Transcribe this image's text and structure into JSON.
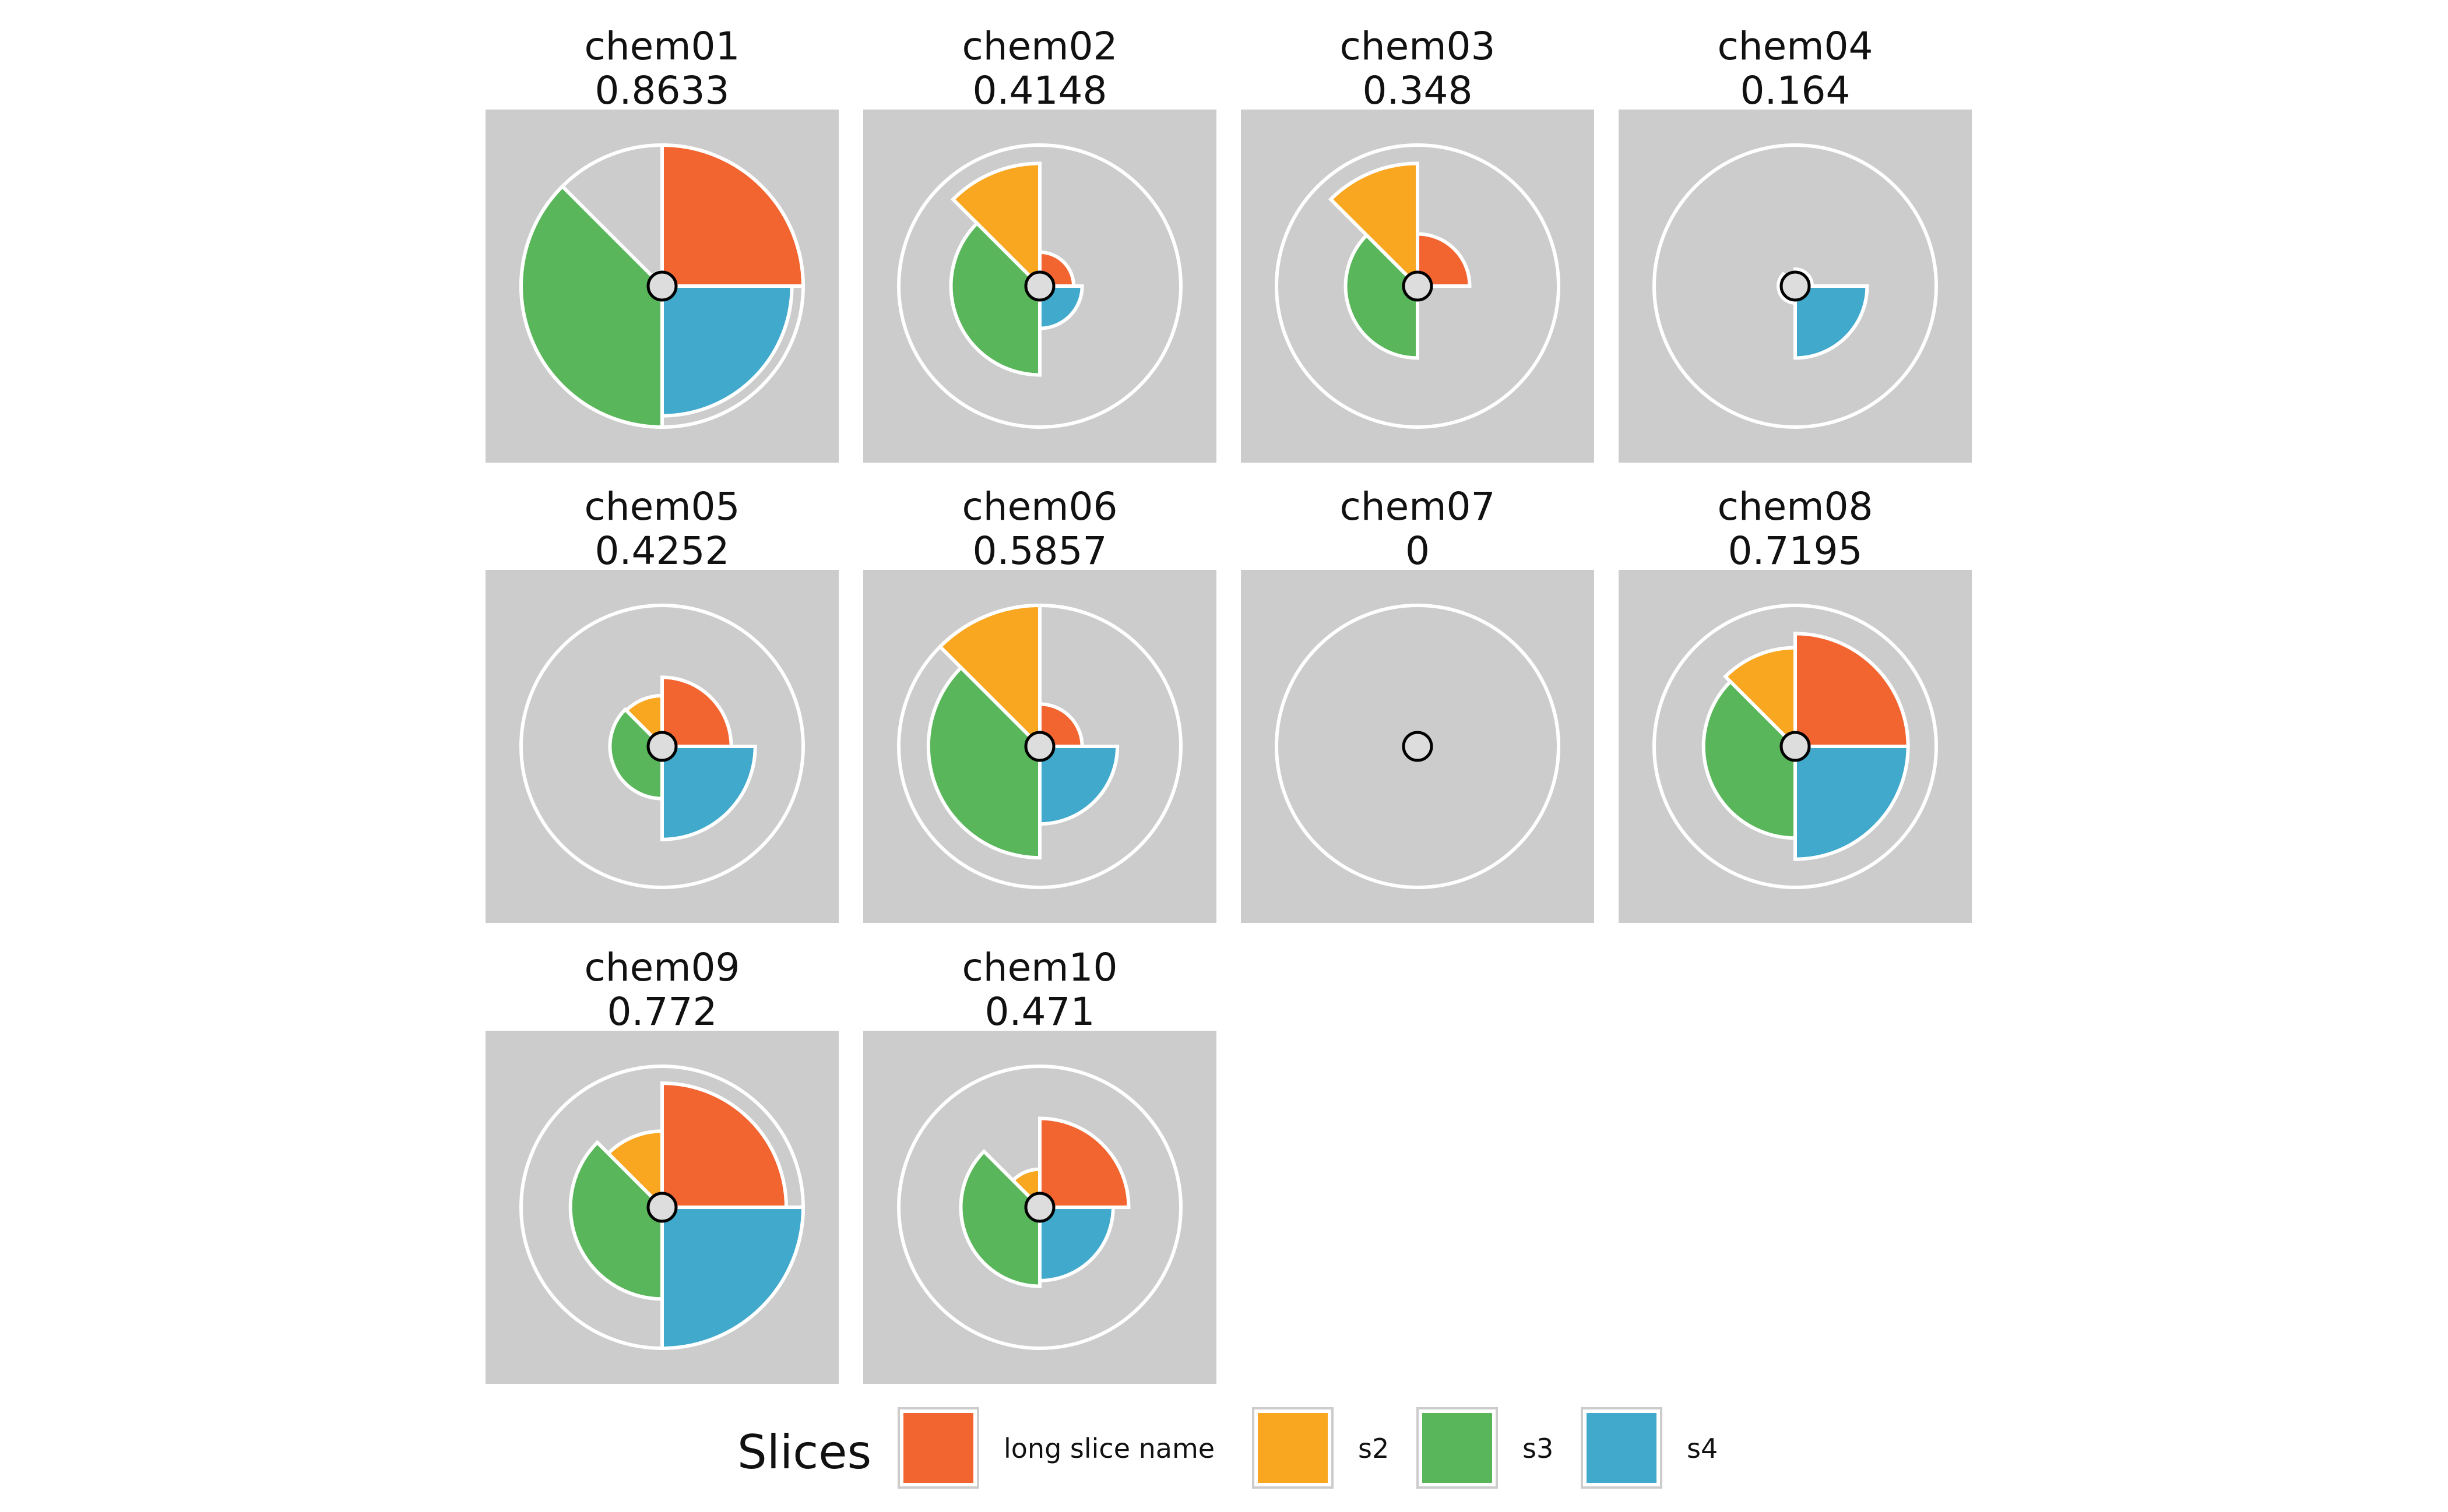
{
  "chart_data": {
    "type": "pie",
    "subtype": "radial-glyph-small-multiples",
    "value_range": [
      0,
      1
    ],
    "legend": {
      "title": "Slices",
      "placement": "bottom"
    },
    "slices": [
      {
        "name": "long slice name",
        "color": "#f26430"
      },
      {
        "name": "s2",
        "color": "#f9a620"
      },
      {
        "name": "s3",
        "color": "#59b65a"
      },
      {
        "name": "s4",
        "color": "#41a9cb"
      }
    ],
    "panels": [
      {
        "label": "chem01",
        "score": "0.8633",
        "values": [
          1.0,
          0.1,
          1.0,
          0.92
        ]
      },
      {
        "label": "chem02",
        "score": "0.4148",
        "values": [
          0.24,
          0.87,
          0.63,
          0.3
        ]
      },
      {
        "label": "chem03",
        "score": "0.348",
        "values": [
          0.37,
          0.87,
          0.51,
          0.0
        ]
      },
      {
        "label": "chem04",
        "score": "0.164",
        "values": [
          0.12,
          0.07,
          0.12,
          0.51
        ]
      },
      {
        "label": "chem05",
        "score": "0.4252",
        "values": [
          0.49,
          0.36,
          0.37,
          0.66
        ]
      },
      {
        "label": "chem06",
        "score": "0.5857",
        "values": [
          0.3,
          1.0,
          0.79,
          0.55
        ]
      },
      {
        "label": "chem07",
        "score": "0",
        "values": [
          0.0,
          0.0,
          0.0,
          0.0
        ]
      },
      {
        "label": "chem08",
        "score": "0.7195",
        "values": [
          0.8,
          0.7,
          0.65,
          0.8
        ]
      },
      {
        "label": "chem09",
        "score": "0.772",
        "values": [
          0.88,
          0.54,
          0.65,
          1.0
        ]
      },
      {
        "label": "chem10",
        "score": "0.471",
        "values": [
          0.63,
          0.27,
          0.56,
          0.52
        ]
      }
    ]
  }
}
